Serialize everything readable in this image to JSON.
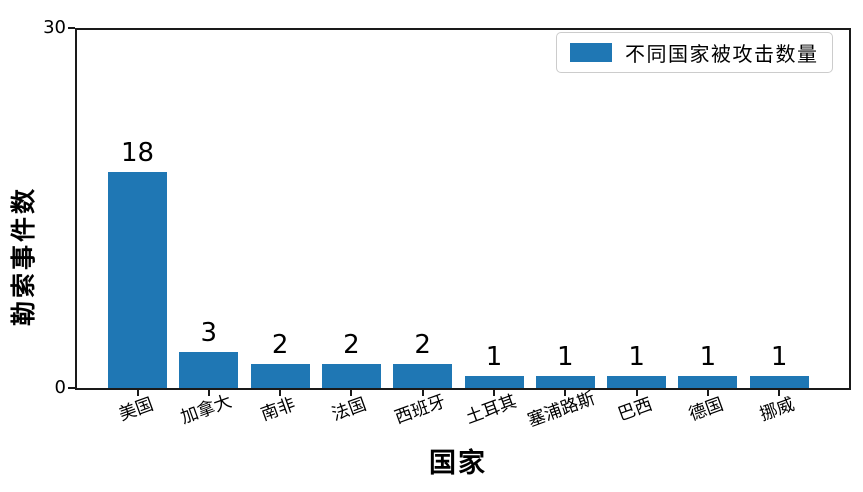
{
  "chart_data": {
    "type": "bar",
    "categories": [
      "美国",
      "加拿大",
      "南非",
      "法国",
      "西班牙",
      "土耳其",
      "塞浦路斯",
      "巴西",
      "德国",
      "挪威"
    ],
    "values": [
      18,
      3,
      2,
      2,
      2,
      1,
      1,
      1,
      1,
      1
    ],
    "xlabel": "国家",
    "ylabel": "勒索事件数",
    "ylim": [
      0,
      30
    ],
    "yticks": [
      0,
      30
    ],
    "legend": {
      "label": "不同国家被攻击数量",
      "position": "upper-right"
    },
    "grid": false,
    "show_value_labels": true,
    "colors": {
      "bar": "#1f77b4",
      "axis": "#1a1a1a",
      "text": "#000000",
      "legend_border": "#cccccc",
      "background": "#ffffff"
    }
  }
}
